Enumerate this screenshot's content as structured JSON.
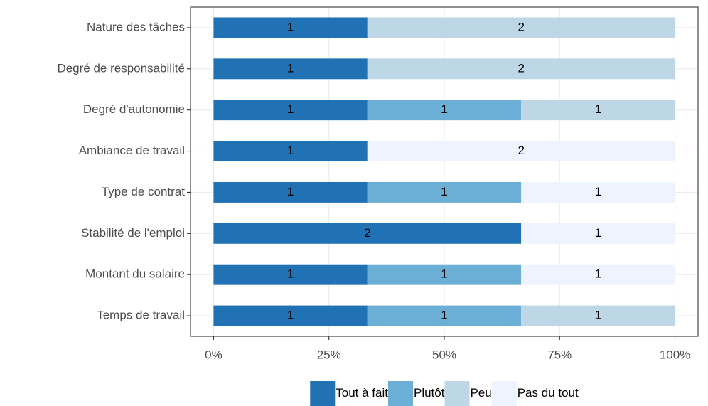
{
  "chart_data": {
    "type": "bar",
    "orientation": "horizontal",
    "stacking": "percent",
    "categories": [
      "Nature des tâches",
      "Degré de responsabilité",
      "Degré d'autonomie",
      "Ambiance de travail",
      "Type de contrat",
      "Stabilité de l'emploi",
      "Montant du salaire",
      "Temps de travail"
    ],
    "series": [
      {
        "name": "Tout à fait",
        "color": "#2171b5",
        "values": [
          1,
          1,
          1,
          1,
          1,
          2,
          1,
          1
        ]
      },
      {
        "name": "Plutôt",
        "color": "#6baed6",
        "values": [
          null,
          null,
          1,
          null,
          1,
          null,
          1,
          1
        ]
      },
      {
        "name": "Peu",
        "color": "#bdd7e7",
        "values": [
          2,
          2,
          1,
          null,
          null,
          null,
          null,
          1
        ]
      },
      {
        "name": "Pas du tout",
        "color": "#eff3ff",
        "values": [
          null,
          null,
          null,
          2,
          1,
          1,
          1,
          null
        ]
      }
    ],
    "xlim": [
      -5,
      105
    ],
    "xticks": [
      {
        "value": 0,
        "label": "0%"
      },
      {
        "value": 25,
        "label": "25%"
      },
      {
        "value": 50,
        "label": "50%"
      },
      {
        "value": 75,
        "label": "75%"
      },
      {
        "value": 100,
        "label": "100%"
      }
    ],
    "grid": true,
    "legend": "bottom"
  }
}
